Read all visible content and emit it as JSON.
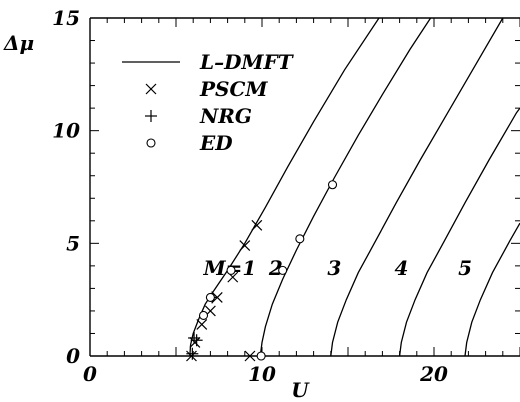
{
  "chart_data": {
    "type": "line",
    "xlabel": "U",
    "ylabel": "Δμ",
    "xlim": [
      0,
      25
    ],
    "ylim": [
      0,
      15
    ],
    "x_ticks": [
      {
        "value": 0,
        "label": "0"
      },
      {
        "value": 10,
        "label": "10"
      },
      {
        "value": 20,
        "label": "20"
      }
    ],
    "y_ticks": [
      {
        "value": 0,
        "label": "0"
      },
      {
        "value": 5,
        "label": "5"
      },
      {
        "value": 10,
        "label": "10"
      },
      {
        "value": 15,
        "label": "15"
      }
    ],
    "x_minor_step": 1,
    "y_minor_step": 1,
    "grid": false,
    "legend_position": "top-left",
    "legend": [
      {
        "label": "L–DMFT",
        "marker": "line"
      },
      {
        "label": "PSCM",
        "marker": "x"
      },
      {
        "label": "NRG",
        "marker": "plus"
      },
      {
        "label": "ED",
        "marker": "circle"
      }
    ],
    "series": [
      {
        "name": "L–DMFT",
        "marker": "line",
        "curves": [
          {
            "label": "M=1",
            "label_x": 6.6,
            "label_y": 3.6,
            "points": [
              [
                5.8,
                0
              ],
              [
                5.85,
                0.5
              ],
              [
                6.0,
                1.0
              ],
              [
                6.3,
                1.6
              ],
              [
                6.7,
                2.3
              ],
              [
                7.2,
                2.9
              ],
              [
                8.0,
                3.8
              ],
              [
                9.0,
                5.0
              ],
              [
                10.2,
                6.6
              ],
              [
                11.5,
                8.4
              ],
              [
                13.0,
                10.4
              ],
              [
                14.8,
                12.7
              ],
              [
                16.8,
                15.0
              ]
            ]
          },
          {
            "label": "2",
            "label_x": 10.4,
            "label_y": 3.6,
            "points": [
              [
                9.9,
                0
              ],
              [
                10.0,
                0.6
              ],
              [
                10.2,
                1.3
              ],
              [
                10.6,
                2.3
              ],
              [
                11.2,
                3.4
              ],
              [
                12.0,
                4.7
              ],
              [
                13.0,
                6.2
              ],
              [
                14.2,
                7.9
              ],
              [
                15.6,
                9.8
              ],
              [
                17.0,
                11.6
              ],
              [
                18.6,
                13.6
              ],
              [
                19.8,
                15.0
              ]
            ]
          },
          {
            "label": "3",
            "label_x": 13.8,
            "label_y": 3.6,
            "points": [
              [
                14.0,
                0
              ],
              [
                14.1,
                0.6
              ],
              [
                14.4,
                1.5
              ],
              [
                14.9,
                2.5
              ],
              [
                15.6,
                3.7
              ],
              [
                16.6,
                5.1
              ],
              [
                17.8,
                6.8
              ],
              [
                19.2,
                8.7
              ],
              [
                20.8,
                10.8
              ],
              [
                22.4,
                12.9
              ],
              [
                24.0,
                15.0
              ]
            ]
          },
          {
            "label": "4",
            "label_x": 17.7,
            "label_y": 3.6,
            "points": [
              [
                18.0,
                0
              ],
              [
                18.1,
                0.6
              ],
              [
                18.4,
                1.5
              ],
              [
                18.9,
                2.5
              ],
              [
                19.6,
                3.7
              ],
              [
                20.6,
                5.1
              ],
              [
                21.8,
                6.8
              ],
              [
                23.2,
                8.7
              ],
              [
                24.8,
                10.8
              ],
              [
                25.0,
                11.0
              ]
            ]
          },
          {
            "label": "5",
            "label_x": 21.4,
            "label_y": 3.6,
            "points": [
              [
                21.8,
                0
              ],
              [
                21.9,
                0.6
              ],
              [
                22.2,
                1.5
              ],
              [
                22.7,
                2.5
              ],
              [
                23.4,
                3.7
              ],
              [
                24.4,
                5.1
              ],
              [
                25.0,
                5.9
              ]
            ]
          }
        ]
      },
      {
        "name": "PSCM",
        "marker": "x",
        "points": [
          [
            5.9,
            0
          ],
          [
            6.1,
            0.6
          ],
          [
            6.5,
            1.4
          ],
          [
            7.0,
            2.0
          ],
          [
            7.4,
            2.6
          ],
          [
            8.3,
            3.5
          ],
          [
            9.0,
            4.9
          ],
          [
            9.7,
            5.8
          ],
          [
            9.3,
            0
          ]
        ]
      },
      {
        "name": "NRG",
        "marker": "plus",
        "points": [
          [
            5.95,
            0.1
          ],
          [
            6.05,
            0.8
          ],
          [
            6.2,
            0.7
          ],
          [
            7.1,
            2.6
          ]
        ]
      },
      {
        "name": "ED",
        "marker": "circle",
        "points": [
          [
            6.6,
            1.8
          ],
          [
            7.0,
            2.6
          ],
          [
            8.2,
            3.8
          ],
          [
            9.95,
            0
          ],
          [
            11.2,
            3.8
          ],
          [
            12.2,
            5.2
          ],
          [
            14.1,
            7.6
          ]
        ]
      }
    ]
  }
}
